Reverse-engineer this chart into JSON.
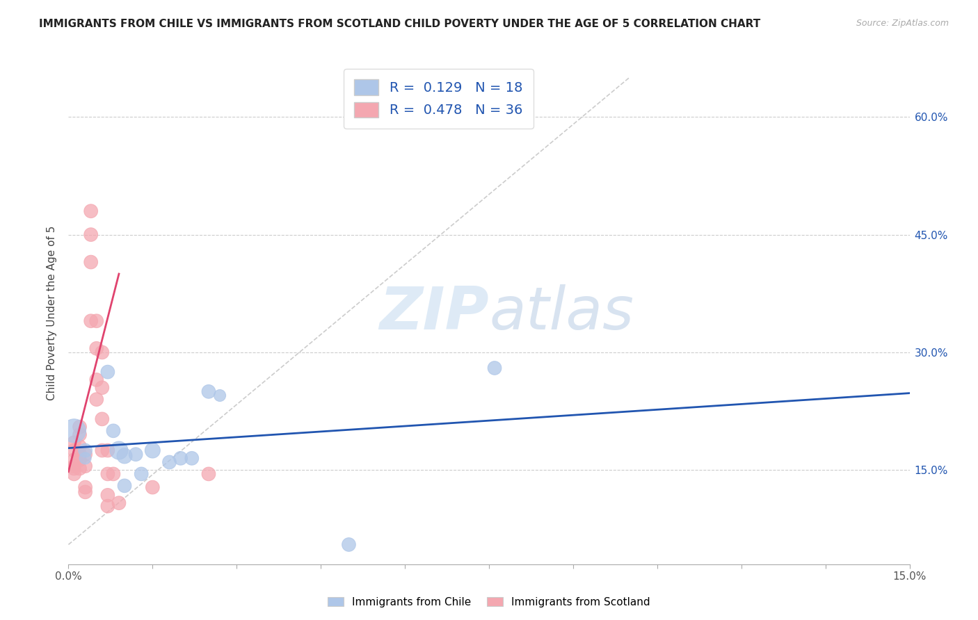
{
  "title": "IMMIGRANTS FROM CHILE VS IMMIGRANTS FROM SCOTLAND CHILD POVERTY UNDER THE AGE OF 5 CORRELATION CHART",
  "source": "Source: ZipAtlas.com",
  "ylabel_label": "Child Poverty Under the Age of 5",
  "yaxis_ticks": [
    0.15,
    0.3,
    0.45,
    0.6
  ],
  "yaxis_labels": [
    "15.0%",
    "30.0%",
    "45.0%",
    "60.0%"
  ],
  "xlim": [
    0.0,
    0.15
  ],
  "ylim": [
    0.03,
    0.67
  ],
  "legend_chile_R": "0.129",
  "legend_chile_N": "18",
  "legend_scotland_R": "0.478",
  "legend_scotland_N": "36",
  "chile_color": "#aec6e8",
  "scotland_color": "#f4a7b0",
  "chile_line_color": "#2155b0",
  "scotland_line_color": "#e0436e",
  "watermark_zip": "ZIP",
  "watermark_atlas": "atlas",
  "chile_points": [
    [
      0.001,
      0.2
    ],
    [
      0.003,
      0.175
    ],
    [
      0.003,
      0.165
    ],
    [
      0.007,
      0.275
    ],
    [
      0.008,
      0.2
    ],
    [
      0.009,
      0.175
    ],
    [
      0.01,
      0.168
    ],
    [
      0.01,
      0.13
    ],
    [
      0.012,
      0.17
    ],
    [
      0.013,
      0.145
    ],
    [
      0.015,
      0.175
    ],
    [
      0.018,
      0.16
    ],
    [
      0.02,
      0.165
    ],
    [
      0.022,
      0.165
    ],
    [
      0.025,
      0.25
    ],
    [
      0.027,
      0.245
    ],
    [
      0.076,
      0.28
    ],
    [
      0.05,
      0.055
    ]
  ],
  "chile_sizes": [
    600,
    200,
    150,
    200,
    200,
    350,
    250,
    200,
    200,
    200,
    250,
    200,
    200,
    200,
    200,
    150,
    200,
    200
  ],
  "scotland_points": [
    [
      0.001,
      0.155
    ],
    [
      0.001,
      0.145
    ],
    [
      0.001,
      0.175
    ],
    [
      0.001,
      0.185
    ],
    [
      0.001,
      0.163
    ],
    [
      0.001,
      0.152
    ],
    [
      0.002,
      0.205
    ],
    [
      0.002,
      0.195
    ],
    [
      0.002,
      0.18
    ],
    [
      0.002,
      0.17
    ],
    [
      0.002,
      0.163
    ],
    [
      0.002,
      0.152
    ],
    [
      0.003,
      0.17
    ],
    [
      0.003,
      0.128
    ],
    [
      0.003,
      0.122
    ],
    [
      0.003,
      0.155
    ],
    [
      0.004,
      0.48
    ],
    [
      0.004,
      0.45
    ],
    [
      0.004,
      0.415
    ],
    [
      0.004,
      0.34
    ],
    [
      0.005,
      0.305
    ],
    [
      0.005,
      0.265
    ],
    [
      0.005,
      0.24
    ],
    [
      0.005,
      0.34
    ],
    [
      0.006,
      0.3
    ],
    [
      0.006,
      0.255
    ],
    [
      0.006,
      0.215
    ],
    [
      0.006,
      0.175
    ],
    [
      0.007,
      0.175
    ],
    [
      0.007,
      0.145
    ],
    [
      0.007,
      0.118
    ],
    [
      0.007,
      0.104
    ],
    [
      0.008,
      0.145
    ],
    [
      0.009,
      0.108
    ],
    [
      0.015,
      0.128
    ],
    [
      0.025,
      0.145
    ]
  ],
  "scotland_sizes": [
    200,
    200,
    200,
    200,
    200,
    200,
    200,
    200,
    200,
    200,
    200,
    200,
    200,
    200,
    200,
    200,
    200,
    200,
    200,
    200,
    200,
    200,
    200,
    200,
    200,
    200,
    200,
    200,
    200,
    200,
    200,
    200,
    200,
    200,
    200,
    200
  ],
  "chile_line_x": [
    0.0,
    0.15
  ],
  "chile_line_y": [
    0.178,
    0.248
  ],
  "scotland_line_x": [
    0.0,
    0.009
  ],
  "scotland_line_y": [
    0.148,
    0.4
  ],
  "ref_line_x": [
    0.0,
    0.1
  ],
  "ref_line_y": [
    0.055,
    0.65
  ]
}
